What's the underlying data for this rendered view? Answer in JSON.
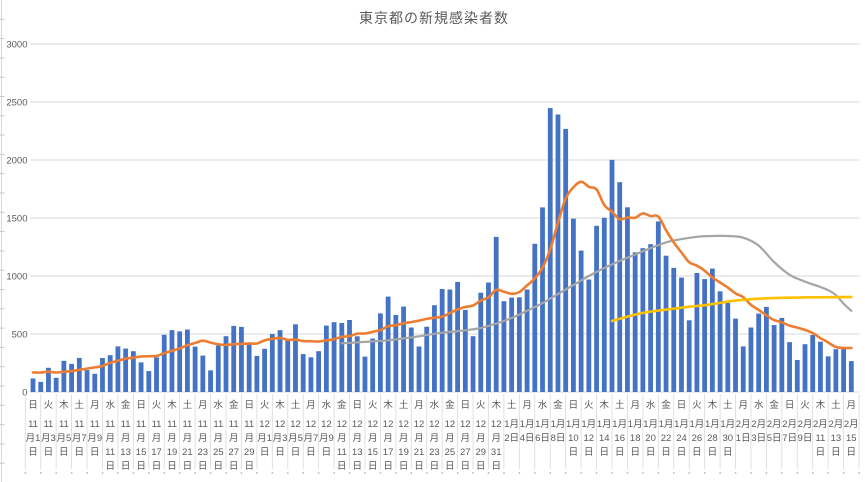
{
  "chart_data": {
    "type": "bar+line combo",
    "title": "東京都の新規感染者数",
    "ylim": [
      0,
      3000
    ],
    "y_ticks": [
      0,
      500,
      1000,
      1500,
      2000,
      2500,
      3000
    ],
    "grid": true,
    "legend": "none",
    "x_unit": "day (107 days, 2020-11-01 .. 2021-02-15), one bar per day, tick label every 2 days",
    "x_tick_labels": [
      {
        "dow": "日",
        "date": "11月1日"
      },
      {
        "dow": "火",
        "date": "11月3日"
      },
      {
        "dow": "木",
        "date": "11月5日"
      },
      {
        "dow": "土",
        "date": "11月7日"
      },
      {
        "dow": "月",
        "date": "11月9日"
      },
      {
        "dow": "水",
        "date": "11月11日"
      },
      {
        "dow": "金",
        "date": "11月13日"
      },
      {
        "dow": "日",
        "date": "11月15日"
      },
      {
        "dow": "火",
        "date": "11月17日"
      },
      {
        "dow": "木",
        "date": "11月19日"
      },
      {
        "dow": "土",
        "date": "11月21日"
      },
      {
        "dow": "月",
        "date": "11月23日"
      },
      {
        "dow": "水",
        "date": "11月25日"
      },
      {
        "dow": "金",
        "date": "11月27日"
      },
      {
        "dow": "日",
        "date": "11月29日"
      },
      {
        "dow": "火",
        "date": "12月1日"
      },
      {
        "dow": "木",
        "date": "12月3日"
      },
      {
        "dow": "土",
        "date": "12月5日"
      },
      {
        "dow": "月",
        "date": "12月7日"
      },
      {
        "dow": "水",
        "date": "12月9日"
      },
      {
        "dow": "金",
        "date": "12月11日"
      },
      {
        "dow": "日",
        "date": "12月13日"
      },
      {
        "dow": "火",
        "date": "12月15日"
      },
      {
        "dow": "木",
        "date": "12月17日"
      },
      {
        "dow": "土",
        "date": "12月19日"
      },
      {
        "dow": "月",
        "date": "12月21日"
      },
      {
        "dow": "水",
        "date": "12月23日"
      },
      {
        "dow": "金",
        "date": "12月25日"
      },
      {
        "dow": "日",
        "date": "12月27日"
      },
      {
        "dow": "火",
        "date": "12月29日"
      },
      {
        "dow": "木",
        "date": "12月31日"
      },
      {
        "dow": "土",
        "date": "1月2日"
      },
      {
        "dow": "月",
        "date": "1月4日"
      },
      {
        "dow": "水",
        "date": "1月6日"
      },
      {
        "dow": "金",
        "date": "1月8日"
      },
      {
        "dow": "日",
        "date": "1月10日"
      },
      {
        "dow": "火",
        "date": "1月12日"
      },
      {
        "dow": "木",
        "date": "1月14日"
      },
      {
        "dow": "土",
        "date": "1月16日"
      },
      {
        "dow": "月",
        "date": "1月18日"
      },
      {
        "dow": "水",
        "date": "1月20日"
      },
      {
        "dow": "金",
        "date": "1月22日"
      },
      {
        "dow": "日",
        "date": "1月24日"
      },
      {
        "dow": "火",
        "date": "1月26日"
      },
      {
        "dow": "木",
        "date": "1月28日"
      },
      {
        "dow": "土",
        "date": "1月30日"
      },
      {
        "dow": "月",
        "date": "2月1日"
      },
      {
        "dow": "水",
        "date": "2月3日"
      },
      {
        "dow": "金",
        "date": "2月5日"
      },
      {
        "dow": "日",
        "date": "2月7日"
      },
      {
        "dow": "火",
        "date": "2月9日"
      },
      {
        "dow": "木",
        "date": "2月11日"
      },
      {
        "dow": "土",
        "date": "2月13日"
      },
      {
        "dow": "月",
        "date": "2月15日"
      }
    ],
    "series": [
      {
        "id": "daily-new-cases-bars",
        "type": "bar",
        "color": "#4472C4",
        "values": [
          116,
          87,
          209,
          122,
          269,
          242,
          294,
          189,
          157,
          293,
          317,
          393,
          374,
          352,
          255,
          180,
          298,
          493,
          534,
          522,
          539,
          391,
          314,
          186,
          401,
          481,
          570,
          561,
          418,
          311,
          372,
          500,
          533,
          449,
          584,
          327,
          299,
          352,
          572,
          602,
          595,
          621,
          480,
          305,
          460,
          678,
          822,
          664,
          736,
          556,
          392,
          563,
          748,
          888,
          884,
          949,
          708,
          481,
          856,
          944,
          1337,
          783,
          814,
          816,
          884,
          1278,
          1591,
          2447,
          2392,
          2268,
          1494,
          1219,
          970,
          1433,
          1502,
          2001,
          1809,
          1592,
          1204,
          1240,
          1274,
          1471,
          1175,
          1070,
          986,
          618,
          1026,
          973,
          1064,
          868,
          769,
          633,
          393,
          556,
          676,
          734,
          577,
          639,
          429,
          276,
          412,
          491,
          434,
          307,
          369,
          371,
          266
        ]
      },
      {
        "id": "gray-line",
        "type": "line",
        "color": "#A5A5A5",
        "points_by_day_index": [
          [
            40,
            420
          ],
          [
            42,
            428
          ],
          [
            44,
            436
          ],
          [
            46,
            446
          ],
          [
            48,
            462
          ],
          [
            50,
            480
          ],
          [
            52,
            502
          ],
          [
            54,
            518
          ],
          [
            56,
            532
          ],
          [
            58,
            552
          ],
          [
            60,
            590
          ],
          [
            62,
            638
          ],
          [
            64,
            700
          ],
          [
            66,
            766
          ],
          [
            68,
            845
          ],
          [
            70,
            922
          ],
          [
            72,
            1000
          ],
          [
            74,
            1069
          ],
          [
            76,
            1130
          ],
          [
            78,
            1185
          ],
          [
            80,
            1240
          ],
          [
            82,
            1290
          ],
          [
            84,
            1318
          ],
          [
            86,
            1338
          ],
          [
            88,
            1345
          ],
          [
            90,
            1345
          ],
          [
            92,
            1330
          ],
          [
            94,
            1262
          ],
          [
            96,
            1120
          ],
          [
            98,
            1010
          ],
          [
            100,
            952
          ],
          [
            102,
            905
          ],
          [
            103,
            878
          ],
          [
            104,
            835
          ],
          [
            105,
            762
          ],
          [
            106,
            700
          ]
        ]
      },
      {
        "id": "orange-7day-average-line",
        "type": "line",
        "color": "#ED7D31",
        "values": [
          169,
          167,
          175,
          168,
          174,
          180,
          191,
          202,
          212,
          224,
          252,
          269,
          288,
          296,
          306,
          309,
          310,
          335,
          355,
          376,
          403,
          422,
          442,
          426,
          412,
          405,
          412,
          415,
          419,
          418,
          445,
          459,
          466,
          449,
          452,
          439,
          438,
          435,
          445,
          455,
          476,
          481,
          503,
          504,
          519,
          534,
          566,
          576,
          592,
          603,
          615,
          630,
          640,
          650,
          681,
          711,
          733,
          746,
          788,
          816,
          880,
          865,
          846,
          862,
          919,
          979,
          1072,
          1230,
          1460,
          1668,
          1765,
          1813,
          1769,
          1746,
          1611,
          1555,
          1490,
          1504,
          1502,
          1540,
          1517,
          1513,
          1395,
          1289,
          1203,
          1119,
          1089,
          1046,
          987,
          944,
          901,
          850,
          818,
          751,
          708,
          661,
          620,
          601,
          572,
          555,
          535,
          508,
          465,
          427,
          388,
          380,
          379
        ]
      },
      {
        "id": "yellow-line",
        "type": "line",
        "color": "#FFC000",
        "points_by_day_index": [
          [
            75,
            612
          ],
          [
            77,
            650
          ],
          [
            79,
            682
          ],
          [
            81,
            702
          ],
          [
            83,
            718
          ],
          [
            85,
            735
          ],
          [
            87,
            748
          ],
          [
            89,
            768
          ],
          [
            91,
            788
          ],
          [
            93,
            800
          ],
          [
            95,
            808
          ],
          [
            97,
            812
          ],
          [
            99,
            814
          ],
          [
            101,
            816
          ],
          [
            103,
            817
          ],
          [
            106,
            820
          ]
        ]
      }
    ]
  },
  "colors": {
    "bar_blue": "#4472C4",
    "line_orange": "#ED7D31",
    "line_gray": "#A5A5A5",
    "line_yellow": "#FFC000",
    "gridline": "#D9D9D9",
    "axis_text": "#595959",
    "title_text": "#595959",
    "separator": "#D9D9D9"
  }
}
